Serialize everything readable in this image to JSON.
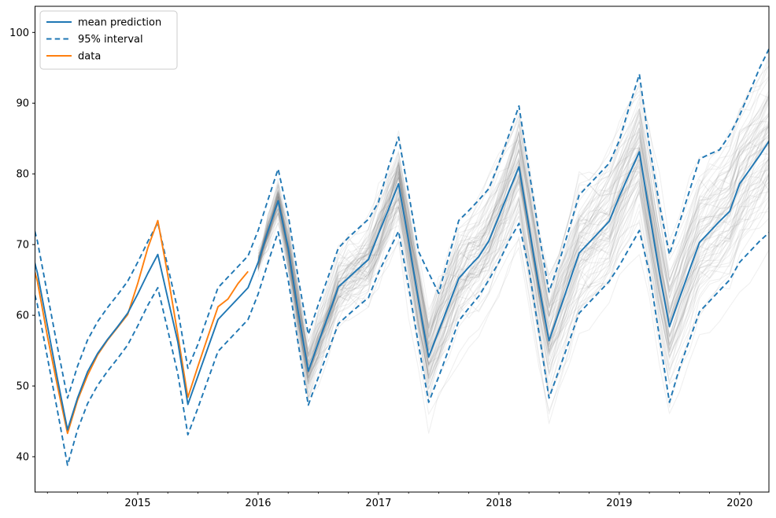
{
  "chart_data": {
    "type": "line",
    "title": "",
    "xlabel": "",
    "ylabel": "",
    "xlim": [
      2014.147,
      2020.243
    ],
    "ylim": [
      35.0,
      103.7
    ],
    "x_major_ticks": [
      2015,
      2016,
      2017,
      2018,
      2019,
      2020
    ],
    "x_tick_labels": [
      "2015",
      "2016",
      "2017",
      "2018",
      "2019",
      "2020"
    ],
    "x_minor_tick_step": 0.25,
    "y_ticks": [
      40,
      50,
      60,
      70,
      80,
      90,
      100
    ],
    "y_tick_labels": [
      "40",
      "50",
      "60",
      "70",
      "80",
      "90",
      "100"
    ],
    "grid": false,
    "legend_position": "upper left",
    "legend": [
      {
        "label": "mean prediction",
        "color": "#1f77b4",
        "style": "solid"
      },
      {
        "label": "95% interval",
        "color": "#1f77b4",
        "style": "dashed"
      },
      {
        "label": "data",
        "color": "#ff7f0e",
        "style": "solid"
      }
    ],
    "series": [
      {
        "name": "mean prediction",
        "color": "#1f77b4",
        "style": "solid",
        "start_year_month": [
          2014,
          1
        ],
        "monthly_values": [
          74.0,
          71.5,
          66.0,
          58.5,
          51.0,
          43.8,
          48.3,
          52.0,
          54.6,
          56.6,
          58.4,
          60.3,
          63.0,
          65.9,
          68.6,
          62.4,
          56.2,
          47.4,
          51.4,
          55.4,
          59.4,
          60.9,
          62.4,
          63.9,
          67.5,
          72.0,
          76.2,
          69.5,
          60.5,
          52.1,
          56.1,
          60.0,
          64.0,
          65.3,
          66.6,
          67.9,
          71.5,
          75.0,
          78.6,
          70.5,
          62.0,
          54.1,
          57.8,
          61.5,
          65.2,
          66.8,
          68.3,
          70.5,
          74.0,
          77.5,
          81.0,
          72.5,
          64.0,
          56.4,
          60.5,
          64.6,
          68.8,
          70.3,
          71.8,
          73.3,
          76.8,
          80.0,
          83.1,
          74.5,
          66.0,
          58.4,
          62.4,
          66.4,
          70.3,
          71.8,
          73.3,
          74.7,
          78.6,
          80.6,
          82.6,
          84.8
        ]
      },
      {
        "name": "95% interval upper",
        "color": "#1f77b4",
        "style": "dashed",
        "start_year_month": [
          2014,
          1
        ],
        "monthly_values": [
          78.5,
          76.0,
          70.5,
          63.0,
          55.5,
          48.3,
          52.8,
          56.5,
          59.1,
          61.1,
          62.9,
          64.8,
          67.5,
          70.4,
          73.1,
          66.9,
          60.7,
          52.5,
          55.9,
          59.9,
          63.9,
          65.4,
          66.9,
          68.4,
          72.0,
          76.4,
          80.7,
          74.2,
          65.3,
          57.3,
          61.5,
          65.5,
          69.5,
          71.0,
          72.3,
          73.6,
          76.0,
          81.0,
          85.2,
          77.3,
          69.0,
          66.0,
          63.1,
          68.3,
          73.4,
          74.8,
          76.3,
          77.9,
          81.5,
          85.5,
          89.6,
          80.5,
          71.5,
          63.3,
          67.5,
          72.2,
          77.0,
          78.5,
          80.0,
          81.5,
          84.7,
          89.5,
          94.1,
          84.0,
          75.7,
          68.6,
          73.1,
          77.6,
          82.1,
          82.8,
          83.4,
          85.5,
          88.3,
          91.6,
          95.0,
          97.9
        ]
      },
      {
        "name": "95% interval lower",
        "color": "#1f77b4",
        "style": "dashed",
        "start_year_month": [
          2014,
          1
        ],
        "monthly_values": [
          69.5,
          67.0,
          61.5,
          54.0,
          46.5,
          38.8,
          43.8,
          47.5,
          50.1,
          52.1,
          53.9,
          55.8,
          58.5,
          61.4,
          63.9,
          57.9,
          51.7,
          43.1,
          46.9,
          50.9,
          54.9,
          56.4,
          57.9,
          59.4,
          63.0,
          67.5,
          71.8,
          65.0,
          56.0,
          47.3,
          51.2,
          55.0,
          58.8,
          60.1,
          61.3,
          62.5,
          66.0,
          69.0,
          71.9,
          64.0,
          55.8,
          47.7,
          51.3,
          55.2,
          59.2,
          61.0,
          62.7,
          65.0,
          67.5,
          70.5,
          73.0,
          66.5,
          57.5,
          48.3,
          52.3,
          56.3,
          60.3,
          61.8,
          63.3,
          64.8,
          67.0,
          69.5,
          72.0,
          66.0,
          57.0,
          47.7,
          52.5,
          56.5,
          60.5,
          62.0,
          63.5,
          65.0,
          67.5,
          69.0,
          70.5,
          71.8
        ]
      },
      {
        "name": "data",
        "color": "#ff7f0e",
        "style": "solid",
        "start_year_month": [
          2014,
          1
        ],
        "monthly_values": [
          72.5,
          70.0,
          64.8,
          57.0,
          50.0,
          43.3,
          48.0,
          51.5,
          54.4,
          56.5,
          58.3,
          60.1,
          64.5,
          69.5,
          73.4,
          65.7,
          57.2,
          48.4,
          52.8,
          57.0,
          61.2,
          62.3,
          64.5,
          66.2
        ]
      }
    ],
    "forecast_samples": {
      "description": "gray posterior sample trajectories around the mean forecast",
      "start_year_month": [
        2016,
        1
      ],
      "months": 52,
      "count": 80,
      "color": "#787878",
      "opacity": 0.11,
      "seed": 11,
      "walk_sigma": 0.78,
      "jitter_sigma": 0.7,
      "outlier_paths": 3,
      "outlier_sigma_mult": 1.6
    }
  },
  "colors": {
    "background": "#ffffff",
    "axis": "#000000",
    "tick_label": "#000000",
    "legend_border": "#cccccc",
    "legend_background": "#ffffff"
  }
}
